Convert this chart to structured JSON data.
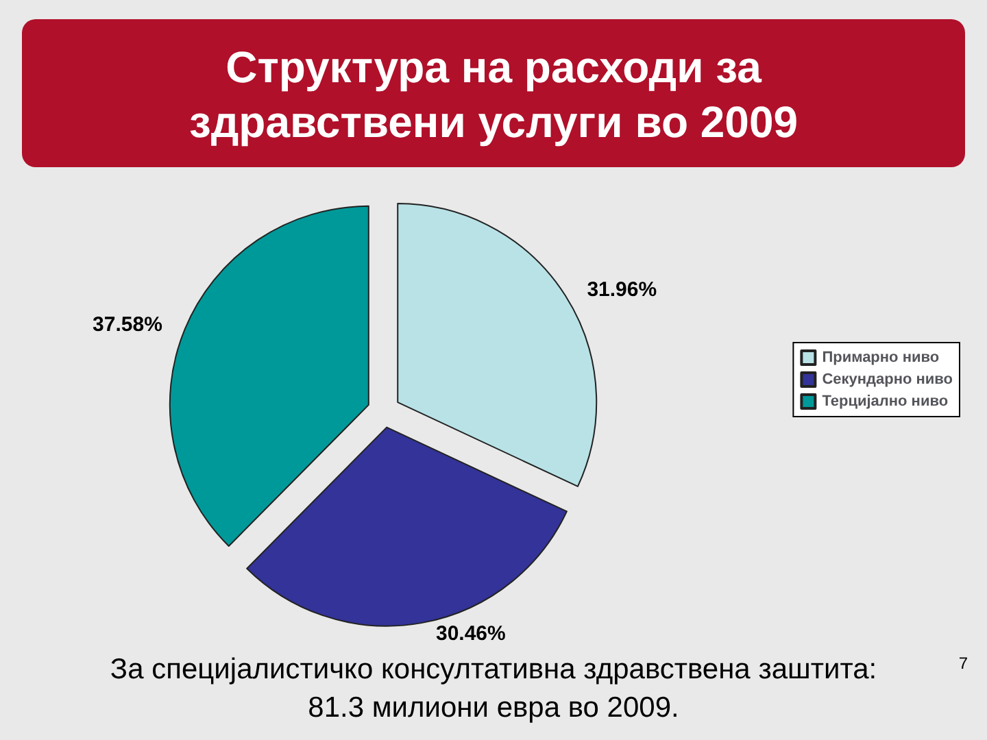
{
  "chart_data": {
    "type": "pie",
    "title": "Структура на расходи за\nздравствени услуги во 2009",
    "categories": [
      "Примарно ниво",
      "Секундарно ниво",
      "Терцијално ниво"
    ],
    "values": [
      31.96,
      30.46,
      37.58
    ],
    "colors": [
      "#b8e2e6",
      "#333399",
      "#009999"
    ],
    "value_labels": [
      "31.96%",
      "30.46%",
      "37.58%"
    ],
    "legend": "right",
    "annotations": [
      "За специјалистичко консултативна здравствена заштита:",
      "81.3 милиони евра во 2009.",
      "7"
    ]
  }
}
